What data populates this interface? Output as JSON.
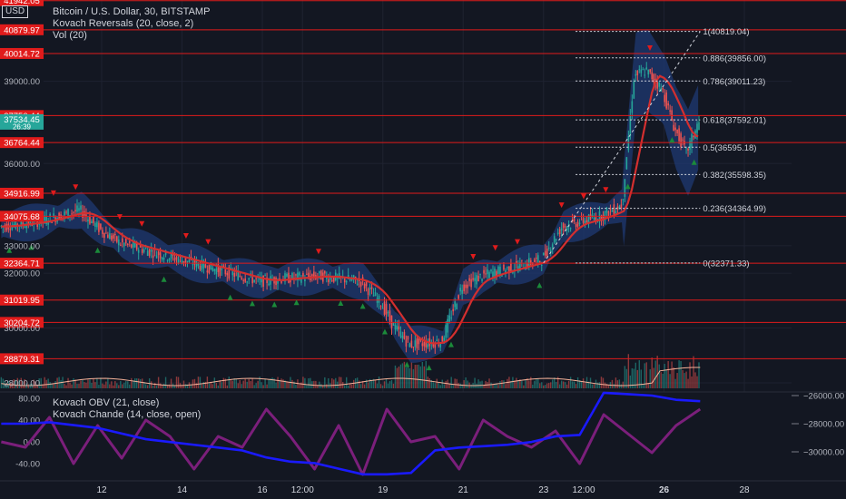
{
  "header": {
    "currency_badge": "USD",
    "legend": [
      "Bitcoin / U.S. Dollar, 30, BITSTAMP",
      "Kovach Reversals (20, close, 2)",
      "Vol (20)"
    ],
    "lower_legend": [
      "Kovach OBV (21, close)",
      "Kovach Chande (14, close, open)"
    ]
  },
  "colors": {
    "background": "#131722",
    "level_line": "#e01b1b",
    "level_label_bg": "#e01b1b",
    "price_label_bg": "#26a69a",
    "candle_up": "#26a69a",
    "candle_down": "#ef5350",
    "reversal_band": "#1f3a73",
    "moving_avg": "#d32f2f",
    "fib_line": "#d1d4dc",
    "obv_line": "#1a1aff",
    "chande_line": "#7b1f7b",
    "up_arrow": "#1b8a3a",
    "down_arrow": "#e01b1b"
  },
  "chart_data": [
    {
      "type": "candlestick",
      "title": "Bitcoin / U.S. Dollar, 30, BITSTAMP",
      "y_axis_ticks": [
        "28000.00",
        "30000.00",
        "32000.00",
        "33000.00",
        "36000.00",
        "39000.00"
      ],
      "ylim": [
        27800,
        41900
      ],
      "price_labels": [
        {
          "text": "41942.05",
          "value": 41942.05
        },
        {
          "text": "40879.97",
          "value": 40879.97
        },
        {
          "text": "40014.72",
          "value": 40014.72
        },
        {
          "text": "37750.44",
          "value": 37750.44
        },
        {
          "text": "36764.44",
          "value": 36764.44
        },
        {
          "text": "34916.99",
          "value": 34916.99
        },
        {
          "text": "34075.68",
          "value": 34075.68
        },
        {
          "text": "32364.71",
          "value": 32364.71
        },
        {
          "text": "31019.95",
          "value": 31019.95
        },
        {
          "text": "30204.72",
          "value": 30204.72
        },
        {
          "text": "28879.31",
          "value": 28879.31
        }
      ],
      "current_price": {
        "text": "37534.45",
        "countdown": "26:39",
        "value": 37534.45
      },
      "fib_levels": [
        {
          "label": "1(40819.04)",
          "value": 40819.04
        },
        {
          "label": "0.886(39856.00)",
          "value": 39856.0
        },
        {
          "label": "0.786(39011.23)",
          "value": 39011.23
        },
        {
          "label": "0.618(37592.01)",
          "value": 37592.01
        },
        {
          "label": "0.5(36595.18)",
          "value": 36595.18
        },
        {
          "label": "0.382(35598.35)",
          "value": 35598.35
        },
        {
          "label": "0.236(34364.99)",
          "value": 34364.99
        },
        {
          "label": "0(32371.33)",
          "value": 32371.33
        }
      ],
      "x_ticks": [
        "12",
        "14",
        "16",
        "12:00",
        "19",
        "21",
        "23",
        "12:00",
        "26",
        "28"
      ],
      "x": [
        9.5,
        10.5,
        11.5,
        12,
        12.5,
        13.5,
        14,
        14.5,
        15.5,
        16,
        16.5,
        17.5,
        18.5,
        19,
        19.3,
        19.7,
        20.5,
        21,
        21.5,
        22.5,
        23,
        23.5,
        24.5,
        25,
        25.3,
        25.6,
        26,
        26.3,
        26.6,
        26.9
      ],
      "close": [
        33700,
        33900,
        34300,
        33600,
        33100,
        32700,
        32500,
        32300,
        31900,
        31700,
        31800,
        31900,
        31700,
        30900,
        30100,
        29400,
        29500,
        31500,
        31900,
        32300,
        32500,
        33700,
        34100,
        34500,
        39200,
        39400,
        38700,
        37300,
        36400,
        37500
      ]
    },
    {
      "type": "line",
      "title": "Kovach OBV (21, close) / Kovach Chande (14, close, open)",
      "left_axis_ticks": [
        "80.00",
        "40.00",
        "0.00",
        "-40.00"
      ],
      "right_axis_ticks": [
        "-26000.00",
        "-28000.00",
        "-30000.00"
      ],
      "series": [
        {
          "name": "Kovach OBV (21, close)",
          "axis": "right",
          "values": [
            -28000,
            -28000,
            -27900,
            -28100,
            -28300,
            -28700,
            -29100,
            -29300,
            -29500,
            -29700,
            -29900,
            -30400,
            -30700,
            -30800,
            -31200,
            -31600,
            -31600,
            -31500,
            -29900,
            -29700,
            -29600,
            -29500,
            -29300,
            -28900,
            -28800,
            -25800,
            -25900,
            -26000,
            -26300,
            -26400
          ]
        },
        {
          "name": "Kovach Chande (14, close, open)",
          "axis": "left",
          "values": [
            0,
            -10,
            45,
            -40,
            30,
            -30,
            40,
            10,
            -50,
            10,
            -10,
            60,
            10,
            -50,
            30,
            -60,
            60,
            0,
            10,
            -50,
            40,
            10,
            -10,
            20,
            -40,
            50,
            15,
            -20,
            30,
            60
          ]
        }
      ]
    }
  ]
}
